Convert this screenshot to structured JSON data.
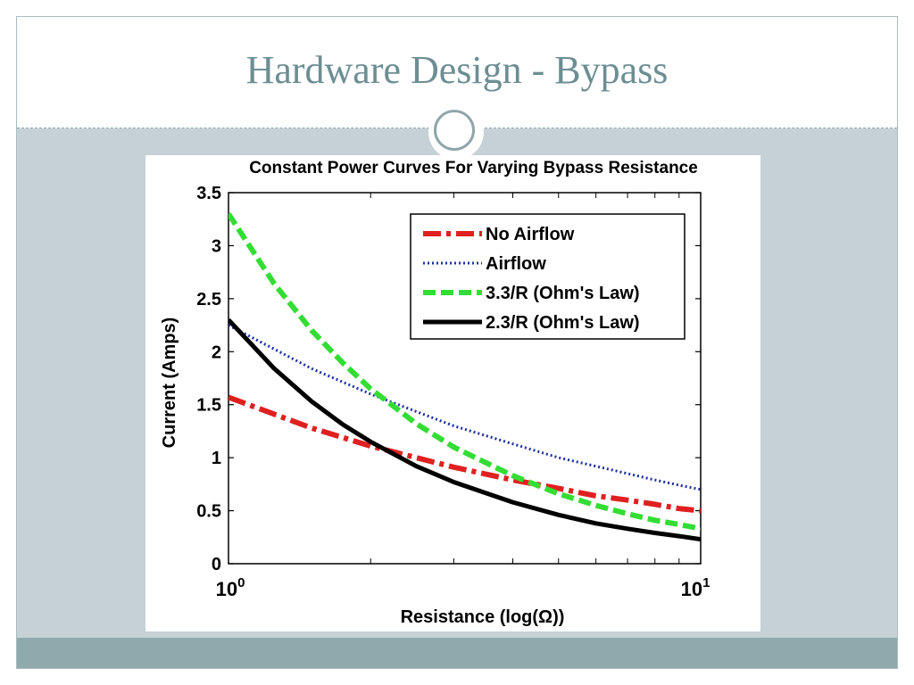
{
  "slide": {
    "title": "Hardware Design - Bypass",
    "colors": {
      "title": "#6d8e93",
      "background": "#c5d1d5",
      "footer": "#8eaaac",
      "ornament": "#8fa6ab"
    }
  },
  "chart_data": {
    "type": "line",
    "title": "Constant Power Curves For Varying Bypass Resistance",
    "xlabel": "Resistance (log(Ω))",
    "ylabel": "Current (Amps)",
    "xscale": "log",
    "xlim": [
      1,
      10
    ],
    "ylim": [
      0,
      3.5
    ],
    "x_ticks": [
      1,
      10
    ],
    "x_tick_labels": [
      {
        "base": "10",
        "exp": "0"
      },
      {
        "base": "10",
        "exp": "1"
      }
    ],
    "y_ticks": [
      0,
      0.5,
      1,
      1.5,
      2,
      2.5,
      3,
      3.5
    ],
    "y_tick_labels": [
      "0",
      "0.5",
      "1",
      "1.5",
      "2",
      "2.5",
      "3",
      "3.5"
    ],
    "grid": false,
    "legend_position": "top-right",
    "series": [
      {
        "name": "No Airflow",
        "color": "#e02020",
        "style": "dashdot",
        "x": [
          1,
          1.5,
          2,
          3,
          4,
          5,
          6,
          7,
          8,
          9,
          10
        ],
        "values": [
          1.57,
          1.28,
          1.11,
          0.91,
          0.79,
          0.71,
          0.64,
          0.6,
          0.56,
          0.52,
          0.5
        ]
      },
      {
        "name": "Airflow",
        "color": "#2030a0",
        "style": "dotted",
        "x": [
          1,
          1.5,
          2,
          3,
          4,
          5,
          6,
          7,
          8,
          9,
          10
        ],
        "values": [
          2.25,
          1.84,
          1.6,
          1.3,
          1.13,
          1.0,
          0.92,
          0.85,
          0.79,
          0.74,
          0.7
        ]
      },
      {
        "name": "3.3/R (Ohm's Law)",
        "color": "#33dd33",
        "style": "dashed",
        "x": [
          1,
          1.25,
          1.5,
          1.75,
          2,
          2.5,
          3,
          4,
          5,
          6,
          7,
          8,
          9,
          10
        ],
        "values": [
          3.3,
          2.64,
          2.2,
          1.89,
          1.65,
          1.32,
          1.1,
          0.83,
          0.66,
          0.55,
          0.47,
          0.41,
          0.37,
          0.33
        ]
      },
      {
        "name": "2.3/R (Ohm's Law)",
        "color": "#000000",
        "style": "solid",
        "x": [
          1,
          1.25,
          1.5,
          1.75,
          2,
          2.5,
          3,
          4,
          5,
          6,
          7,
          8,
          9,
          10
        ],
        "values": [
          2.3,
          1.84,
          1.53,
          1.31,
          1.15,
          0.92,
          0.77,
          0.58,
          0.46,
          0.38,
          0.33,
          0.29,
          0.26,
          0.23
        ]
      }
    ]
  }
}
